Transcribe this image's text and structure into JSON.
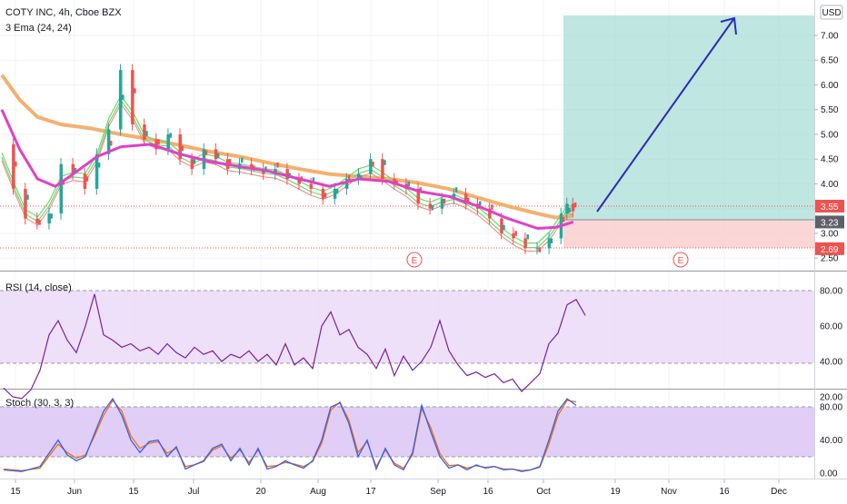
{
  "colors": {
    "up": "#26a69a",
    "down": "#ef5350",
    "ema_long": "#f5b06e",
    "ema_mid": "#e040c8",
    "ema_fast_green": "#6fd96f",
    "ema_fast_red": "#f08080",
    "rsi_line": "#7b1fa2",
    "rsi_band": "#ead8f8",
    "stoch_k": "#2962ff",
    "stoch_d": "#ff6d00",
    "stoch_band": "#dcc6f5",
    "profit_zone": "#a9ddd6",
    "loss_zone": "#f9cfcf",
    "arrow": "#2b2bb5"
  },
  "header": {
    "symbol": "COTY INC, 4h, Cboe BZX",
    "indicator": "3 Ema (24, 24)"
  },
  "currency_button": "USD",
  "markers": [
    "E",
    "E"
  ],
  "price_axis": {
    "ticks": [
      "7.00",
      "6.50",
      "6.00",
      "5.50",
      "5.00",
      "4.50",
      "4.00",
      "3.50",
      "3.00",
      "2.50"
    ],
    "badges": [
      {
        "label": "3.55",
        "value": 3.55,
        "color": "#ef5350"
      },
      {
        "label": "3.23",
        "value": 3.23,
        "color": "#5d606b"
      },
      {
        "label": "2.69",
        "value": 2.69,
        "color": "#ef5350"
      }
    ]
  },
  "rsi": {
    "title": "RSI (14, close)",
    "ticks": [
      "80.00",
      "60.00",
      "40.00",
      "20.00"
    ]
  },
  "stoch": {
    "title": "Stoch (30, 3, 3)",
    "ticks": [
      "80.00",
      "40.00",
      "0.00"
    ]
  },
  "time_axis": [
    "15",
    "Jun",
    "15",
    "Jul",
    "20",
    "Aug",
    "17",
    "Sep",
    "16",
    "Oct",
    "19",
    "Nov",
    "16",
    "Dec"
  ],
  "position": {
    "target": 7.38,
    "entry": 3.23,
    "stop": 2.69
  },
  "chart_data": {
    "type": "candlestick",
    "close_path": [
      [
        0,
        4.8
      ],
      [
        2,
        3.9
      ],
      [
        4,
        3.3
      ],
      [
        6,
        3.2
      ],
      [
        8,
        3.4
      ],
      [
        10,
        4.4
      ],
      [
        12,
        4.2
      ],
      [
        14,
        3.9
      ],
      [
        16,
        4.6
      ],
      [
        18,
        5.1
      ],
      [
        20,
        6.3
      ],
      [
        22,
        5.2
      ],
      [
        24,
        4.9
      ],
      [
        26,
        4.7
      ],
      [
        28,
        5.0
      ],
      [
        30,
        4.5
      ],
      [
        32,
        4.3
      ],
      [
        34,
        4.7
      ],
      [
        36,
        4.5
      ],
      [
        38,
        4.3
      ],
      [
        40,
        4.4
      ],
      [
        42,
        4.3
      ],
      [
        44,
        4.2
      ],
      [
        46,
        4.3
      ],
      [
        48,
        4.1
      ],
      [
        50,
        4.0
      ],
      [
        52,
        3.9
      ],
      [
        54,
        3.7
      ],
      [
        56,
        3.9
      ],
      [
        58,
        4.1
      ],
      [
        60,
        4.2
      ],
      [
        62,
        4.5
      ],
      [
        64,
        4.1
      ],
      [
        66,
        4.0
      ],
      [
        68,
        3.9
      ],
      [
        70,
        3.6
      ],
      [
        72,
        3.5
      ],
      [
        74,
        3.7
      ],
      [
        76,
        3.8
      ],
      [
        78,
        3.6
      ],
      [
        80,
        3.5
      ],
      [
        82,
        3.3
      ],
      [
        84,
        3.0
      ],
      [
        86,
        2.9
      ],
      [
        88,
        2.7
      ],
      [
        90,
        2.7
      ],
      [
        92,
        2.9
      ],
      [
        94,
        3.4
      ],
      [
        95,
        3.6
      ],
      [
        96,
        3.45
      ]
    ],
    "ema_long": [
      [
        0,
        6.2
      ],
      [
        3,
        5.7
      ],
      [
        6,
        5.35
      ],
      [
        10,
        5.2
      ],
      [
        15,
        5.12
      ],
      [
        20,
        5.0
      ],
      [
        25,
        4.9
      ],
      [
        30,
        4.78
      ],
      [
        35,
        4.65
      ],
      [
        40,
        4.55
      ],
      [
        45,
        4.42
      ],
      [
        50,
        4.3
      ],
      [
        55,
        4.2
      ],
      [
        60,
        4.15
      ],
      [
        65,
        4.1
      ],
      [
        70,
        4.02
      ],
      [
        75,
        3.9
      ],
      [
        80,
        3.72
      ],
      [
        85,
        3.55
      ],
      [
        90,
        3.4
      ],
      [
        93,
        3.32
      ],
      [
        96,
        3.35
      ]
    ],
    "ema_mid": [
      [
        0,
        5.5
      ],
      [
        3,
        4.7
      ],
      [
        6,
        4.1
      ],
      [
        9,
        3.95
      ],
      [
        12,
        4.2
      ],
      [
        16,
        4.55
      ],
      [
        20,
        4.75
      ],
      [
        25,
        4.8
      ],
      [
        30,
        4.6
      ],
      [
        35,
        4.45
      ],
      [
        40,
        4.35
      ],
      [
        45,
        4.25
      ],
      [
        50,
        4.1
      ],
      [
        55,
        3.95
      ],
      [
        60,
        4.1
      ],
      [
        65,
        4.05
      ],
      [
        70,
        3.85
      ],
      [
        75,
        3.75
      ],
      [
        80,
        3.55
      ],
      [
        85,
        3.3
      ],
      [
        90,
        3.1
      ],
      [
        93,
        3.12
      ],
      [
        96,
        3.23
      ]
    ],
    "rsi_path": [
      [
        0,
        25
      ],
      [
        1,
        20
      ],
      [
        2,
        19
      ],
      [
        3,
        24
      ],
      [
        4,
        35
      ],
      [
        5,
        55
      ],
      [
        6,
        63
      ],
      [
        7,
        52
      ],
      [
        8,
        45
      ],
      [
        9,
        60
      ],
      [
        10,
        78
      ],
      [
        11,
        55
      ],
      [
        12,
        52
      ],
      [
        13,
        48
      ],
      [
        14,
        50
      ],
      [
        15,
        46
      ],
      [
        16,
        48
      ],
      [
        17,
        44
      ],
      [
        18,
        50
      ],
      [
        19,
        45
      ],
      [
        20,
        42
      ],
      [
        21,
        48
      ],
      [
        22,
        44
      ],
      [
        23,
        46
      ],
      [
        24,
        40
      ],
      [
        25,
        44
      ],
      [
        26,
        42
      ],
      [
        27,
        46
      ],
      [
        28,
        40
      ],
      [
        29,
        44
      ],
      [
        30,
        38
      ],
      [
        31,
        50
      ],
      [
        32,
        38
      ],
      [
        33,
        42
      ],
      [
        34,
        36
      ],
      [
        35,
        60
      ],
      [
        36,
        68
      ],
      [
        37,
        55
      ],
      [
        38,
        58
      ],
      [
        39,
        48
      ],
      [
        40,
        44
      ],
      [
        41,
        36
      ],
      [
        42,
        47
      ],
      [
        43,
        32
      ],
      [
        44,
        43
      ],
      [
        45,
        35
      ],
      [
        46,
        40
      ],
      [
        47,
        48
      ],
      [
        48,
        63
      ],
      [
        49,
        46
      ],
      [
        50,
        38
      ],
      [
        51,
        32
      ],
      [
        52,
        34
      ],
      [
        53,
        31
      ],
      [
        54,
        33
      ],
      [
        55,
        28
      ],
      [
        56,
        30
      ],
      [
        57,
        23
      ],
      [
        58,
        28
      ],
      [
        59,
        33
      ],
      [
        60,
        50
      ],
      [
        61,
        56
      ],
      [
        62,
        72
      ],
      [
        63,
        75
      ],
      [
        64,
        66
      ]
    ],
    "stoch_k": [
      [
        0,
        4
      ],
      [
        2,
        2
      ],
      [
        4,
        8
      ],
      [
        6,
        40
      ],
      [
        7,
        22
      ],
      [
        8,
        15
      ],
      [
        9,
        20
      ],
      [
        10,
        48
      ],
      [
        11,
        75
      ],
      [
        12,
        90
      ],
      [
        13,
        70
      ],
      [
        14,
        40
      ],
      [
        15,
        25
      ],
      [
        16,
        38
      ],
      [
        17,
        40
      ],
      [
        18,
        20
      ],
      [
        19,
        32
      ],
      [
        20,
        5
      ],
      [
        21,
        10
      ],
      [
        22,
        15
      ],
      [
        23,
        30
      ],
      [
        24,
        35
      ],
      [
        25,
        15
      ],
      [
        26,
        30
      ],
      [
        27,
        10
      ],
      [
        28,
        30
      ],
      [
        29,
        5
      ],
      [
        30,
        8
      ],
      [
        31,
        15
      ],
      [
        32,
        10
      ],
      [
        33,
        6
      ],
      [
        34,
        15
      ],
      [
        35,
        40
      ],
      [
        36,
        80
      ],
      [
        37,
        85
      ],
      [
        38,
        60
      ],
      [
        39,
        20
      ],
      [
        40,
        40
      ],
      [
        41,
        5
      ],
      [
        42,
        30
      ],
      [
        43,
        10
      ],
      [
        44,
        4
      ],
      [
        45,
        25
      ],
      [
        46,
        82
      ],
      [
        47,
        50
      ],
      [
        48,
        20
      ],
      [
        49,
        6
      ],
      [
        50,
        10
      ],
      [
        51,
        4
      ],
      [
        52,
        10
      ],
      [
        53,
        6
      ],
      [
        54,
        8
      ],
      [
        55,
        4
      ],
      [
        56,
        5
      ],
      [
        57,
        2
      ],
      [
        58,
        4
      ],
      [
        59,
        8
      ],
      [
        60,
        40
      ],
      [
        61,
        75
      ],
      [
        62,
        90
      ],
      [
        63,
        82
      ]
    ],
    "stoch_d": [
      [
        0,
        5
      ],
      [
        2,
        3
      ],
      [
        4,
        6
      ],
      [
        6,
        35
      ],
      [
        7,
        25
      ],
      [
        8,
        18
      ],
      [
        9,
        22
      ],
      [
        10,
        45
      ],
      [
        11,
        70
      ],
      [
        12,
        88
      ],
      [
        13,
        75
      ],
      [
        14,
        45
      ],
      [
        15,
        30
      ],
      [
        16,
        36
      ],
      [
        17,
        38
      ],
      [
        18,
        24
      ],
      [
        19,
        30
      ],
      [
        20,
        8
      ],
      [
        21,
        10
      ],
      [
        22,
        14
      ],
      [
        23,
        28
      ],
      [
        24,
        33
      ],
      [
        25,
        18
      ],
      [
        26,
        28
      ],
      [
        27,
        13
      ],
      [
        28,
        28
      ],
      [
        29,
        8
      ],
      [
        30,
        9
      ],
      [
        31,
        13
      ],
      [
        32,
        11
      ],
      [
        33,
        8
      ],
      [
        34,
        14
      ],
      [
        35,
        36
      ],
      [
        36,
        76
      ],
      [
        37,
        86
      ],
      [
        38,
        64
      ],
      [
        39,
        25
      ],
      [
        40,
        38
      ],
      [
        41,
        8
      ],
      [
        42,
        28
      ],
      [
        43,
        12
      ],
      [
        44,
        6
      ],
      [
        45,
        22
      ],
      [
        46,
        78
      ],
      [
        47,
        55
      ],
      [
        48,
        24
      ],
      [
        49,
        9
      ],
      [
        50,
        10
      ],
      [
        51,
        6
      ],
      [
        52,
        9
      ],
      [
        53,
        7
      ],
      [
        54,
        8
      ],
      [
        55,
        5
      ],
      [
        56,
        5
      ],
      [
        57,
        3
      ],
      [
        58,
        4
      ],
      [
        59,
        7
      ],
      [
        60,
        35
      ],
      [
        61,
        70
      ],
      [
        62,
        88
      ],
      [
        63,
        86
      ]
    ]
  }
}
